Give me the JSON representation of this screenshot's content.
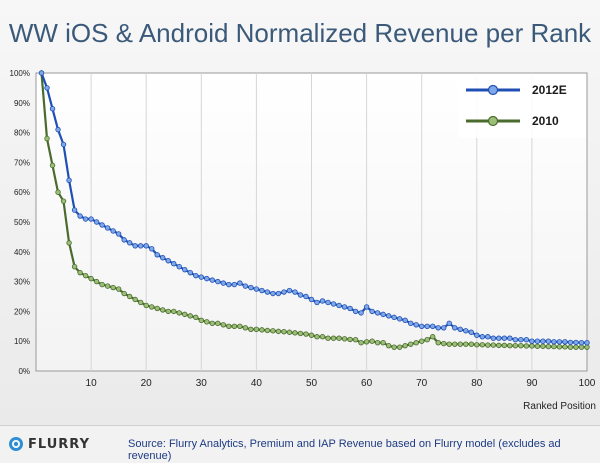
{
  "page": {
    "title": "WW iOS & Android Normalized Revenue per Rank",
    "footer": {
      "logo_text": "FLURRY",
      "source": "Source: Flurry Analytics, Premium and IAP Revenue based on Flurry model (excludes ad revenue)"
    }
  },
  "chart_data": {
    "type": "line",
    "title": "WW iOS & Android Normalized Revenue per Rank",
    "xlabel": "Ranked Position",
    "ylabel": "",
    "xlim": [
      0,
      100
    ],
    "ylim": [
      0,
      100
    ],
    "x_ticks": [
      10,
      20,
      30,
      40,
      50,
      60,
      70,
      80,
      90,
      100
    ],
    "y_ticks": [
      "0%",
      "10%",
      "20%",
      "30%",
      "40%",
      "50%",
      "60%",
      "70%",
      "80%",
      "90%",
      "100%"
    ],
    "grid": "vertical",
    "legend_position": "top-right",
    "series": [
      {
        "name": "2012E",
        "color": "#1f4fb5",
        "marker_color": "#7fa8e8",
        "values": [
          [
            1,
            100
          ],
          [
            2,
            95
          ],
          [
            3,
            88
          ],
          [
            4,
            81
          ],
          [
            5,
            76
          ],
          [
            6,
            64
          ],
          [
            7,
            54
          ],
          [
            8,
            52
          ],
          [
            9,
            51
          ],
          [
            10,
            51
          ],
          [
            11,
            50
          ],
          [
            12,
            49
          ],
          [
            13,
            48
          ],
          [
            14,
            47
          ],
          [
            15,
            46
          ],
          [
            16,
            44
          ],
          [
            17,
            43
          ],
          [
            18,
            42
          ],
          [
            19,
            42
          ],
          [
            20,
            42
          ],
          [
            21,
            41
          ],
          [
            22,
            39
          ],
          [
            23,
            38
          ],
          [
            24,
            37
          ],
          [
            25,
            36
          ],
          [
            26,
            35
          ],
          [
            27,
            34
          ],
          [
            28,
            33
          ],
          [
            29,
            32
          ],
          [
            30,
            31.5
          ],
          [
            31,
            31
          ],
          [
            32,
            30.5
          ],
          [
            33,
            30
          ],
          [
            34,
            29.5
          ],
          [
            35,
            29
          ],
          [
            36,
            29
          ],
          [
            37,
            29.5
          ],
          [
            38,
            28.5
          ],
          [
            39,
            28
          ],
          [
            40,
            27.5
          ],
          [
            41,
            27
          ],
          [
            42,
            26.5
          ],
          [
            43,
            26
          ],
          [
            44,
            26
          ],
          [
            45,
            26.5
          ],
          [
            46,
            27
          ],
          [
            47,
            26.5
          ],
          [
            48,
            25.5
          ],
          [
            49,
            25
          ],
          [
            50,
            24
          ],
          [
            51,
            23
          ],
          [
            52,
            23.5
          ],
          [
            53,
            23
          ],
          [
            54,
            22.5
          ],
          [
            55,
            22
          ],
          [
            56,
            21.5
          ],
          [
            57,
            21
          ],
          [
            58,
            20
          ],
          [
            59,
            19.5
          ],
          [
            60,
            21.5
          ],
          [
            61,
            20
          ],
          [
            62,
            19.5
          ],
          [
            63,
            19
          ],
          [
            64,
            18.5
          ],
          [
            65,
            18
          ],
          [
            66,
            17.5
          ],
          [
            67,
            17
          ],
          [
            68,
            16
          ],
          [
            69,
            15.5
          ],
          [
            70,
            15
          ],
          [
            71,
            15
          ],
          [
            72,
            15
          ],
          [
            73,
            14.5
          ],
          [
            74,
            14.5
          ],
          [
            75,
            16
          ],
          [
            76,
            14.5
          ],
          [
            77,
            14
          ],
          [
            78,
            13.5
          ],
          [
            79,
            13
          ],
          [
            80,
            12
          ],
          [
            81,
            11.5
          ],
          [
            82,
            11.5
          ],
          [
            83,
            11
          ],
          [
            84,
            11
          ],
          [
            85,
            11
          ],
          [
            86,
            11
          ],
          [
            87,
            10.5
          ],
          [
            88,
            10.5
          ],
          [
            89,
            10.5
          ],
          [
            90,
            10
          ],
          [
            91,
            10
          ],
          [
            92,
            10
          ],
          [
            93,
            10
          ],
          [
            94,
            9.8
          ],
          [
            95,
            9.8
          ],
          [
            96,
            9.8
          ],
          [
            97,
            9.6
          ],
          [
            98,
            9.6
          ],
          [
            99,
            9.5
          ],
          [
            100,
            9.5
          ]
        ]
      },
      {
        "name": "2010",
        "color": "#4a6b2e",
        "marker_color": "#9cbf78",
        "values": [
          [
            1,
            100
          ],
          [
            2,
            78
          ],
          [
            3,
            69
          ],
          [
            4,
            60
          ],
          [
            5,
            57
          ],
          [
            6,
            43
          ],
          [
            7,
            35
          ],
          [
            8,
            33
          ],
          [
            9,
            32
          ],
          [
            10,
            31
          ],
          [
            11,
            30
          ],
          [
            12,
            29
          ],
          [
            13,
            28.5
          ],
          [
            14,
            28
          ],
          [
            15,
            27.5
          ],
          [
            16,
            26
          ],
          [
            17,
            25
          ],
          [
            18,
            24
          ],
          [
            19,
            23
          ],
          [
            20,
            22
          ],
          [
            21,
            21.5
          ],
          [
            22,
            21
          ],
          [
            23,
            20.5
          ],
          [
            24,
            20
          ],
          [
            25,
            20
          ],
          [
            26,
            19.5
          ],
          [
            27,
            19
          ],
          [
            28,
            18.5
          ],
          [
            29,
            18
          ],
          [
            30,
            17
          ],
          [
            31,
            16.5
          ],
          [
            32,
            16
          ],
          [
            33,
            16
          ],
          [
            34,
            15.5
          ],
          [
            35,
            15
          ],
          [
            36,
            15
          ],
          [
            37,
            15
          ],
          [
            38,
            14.5
          ],
          [
            39,
            14
          ],
          [
            40,
            14
          ],
          [
            41,
            13.8
          ],
          [
            42,
            13.6
          ],
          [
            43,
            13.5
          ],
          [
            44,
            13.3
          ],
          [
            45,
            13.2
          ],
          [
            46,
            13
          ],
          [
            47,
            12.8
          ],
          [
            48,
            12.6
          ],
          [
            49,
            12.4
          ],
          [
            50,
            12
          ],
          [
            51,
            11.5
          ],
          [
            52,
            11.5
          ],
          [
            53,
            11
          ],
          [
            54,
            11
          ],
          [
            55,
            11
          ],
          [
            56,
            10.8
          ],
          [
            57,
            10.6
          ],
          [
            58,
            10.5
          ],
          [
            59,
            9.5
          ],
          [
            60,
            9.8
          ],
          [
            61,
            10
          ],
          [
            62,
            9.5
          ],
          [
            63,
            9.5
          ],
          [
            64,
            8.5
          ],
          [
            65,
            8
          ],
          [
            66,
            8
          ],
          [
            67,
            8.5
          ],
          [
            68,
            9
          ],
          [
            69,
            9.5
          ],
          [
            70,
            10
          ],
          [
            71,
            10.5
          ],
          [
            72,
            11.5
          ],
          [
            73,
            9.5
          ],
          [
            74,
            9.2
          ],
          [
            75,
            9
          ],
          [
            76,
            9
          ],
          [
            77,
            9
          ],
          [
            78,
            9
          ],
          [
            79,
            9
          ],
          [
            80,
            8.8
          ],
          [
            81,
            8.8
          ],
          [
            82,
            8.7
          ],
          [
            83,
            8.7
          ],
          [
            84,
            8.6
          ],
          [
            85,
            8.6
          ],
          [
            86,
            8.5
          ],
          [
            87,
            8.5
          ],
          [
            88,
            8.5
          ],
          [
            89,
            8.4
          ],
          [
            90,
            8.4
          ],
          [
            91,
            8.3
          ],
          [
            92,
            8.3
          ],
          [
            93,
            8.2
          ],
          [
            94,
            8.2
          ],
          [
            95,
            8.1
          ],
          [
            96,
            8.1
          ],
          [
            97,
            8
          ],
          [
            98,
            8
          ],
          [
            99,
            8
          ],
          [
            100,
            8
          ]
        ]
      }
    ]
  }
}
